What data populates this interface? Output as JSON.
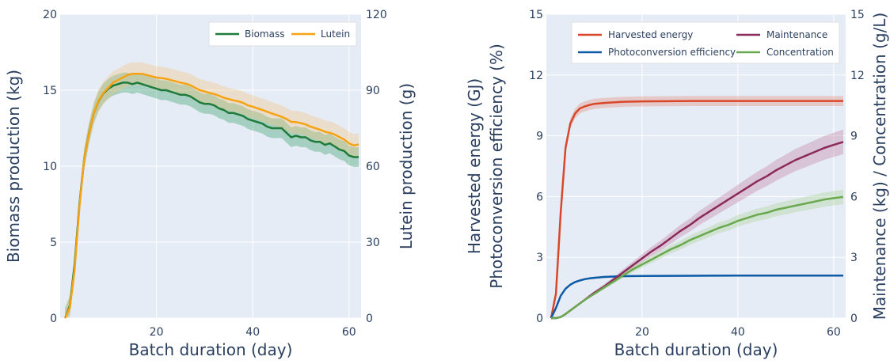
{
  "chart_data": [
    {
      "type": "line",
      "xlabel": "Batch duration (day)",
      "ylabel": "Biomass production (kg)",
      "y2label": "Lutein production (g)",
      "xlim": [
        0,
        62.5
      ],
      "ylim": [
        0,
        20
      ],
      "y2lim": [
        0,
        120
      ],
      "x_ticks": [
        "20",
        "40",
        "60"
      ],
      "y_ticks": [
        "0",
        "5",
        "10",
        "15",
        "20"
      ],
      "y2_ticks": [
        "0",
        "30",
        "60",
        "90",
        "120"
      ],
      "grid": true,
      "legend": "top-right",
      "series": [
        {
          "name": "Biomass",
          "axis": "y",
          "color": "#1e7b3a",
          "band_color": "#2e9e5e",
          "x": [
            1,
            2,
            3,
            4,
            5,
            6,
            7,
            8,
            9,
            10,
            11,
            12,
            13,
            14,
            15,
            16,
            17,
            18,
            19,
            20,
            21,
            22,
            23,
            24,
            25,
            26,
            27,
            28,
            29,
            30,
            31,
            32,
            33,
            34,
            35,
            36,
            37,
            38,
            39,
            40,
            41,
            42,
            43,
            44,
            45,
            46,
            47,
            48,
            49,
            50,
            51,
            52,
            53,
            54,
            55,
            56,
            57,
            58,
            59,
            60,
            61,
            62
          ],
          "values": [
            0,
            0.8,
            3.5,
            7.5,
            10.5,
            12.2,
            13.5,
            14.3,
            14.8,
            15.1,
            15.3,
            15.4,
            15.5,
            15.5,
            15.4,
            15.5,
            15.4,
            15.3,
            15.2,
            15.1,
            15.0,
            15.0,
            14.9,
            14.8,
            14.7,
            14.7,
            14.6,
            14.4,
            14.2,
            14.1,
            14.1,
            14.0,
            13.8,
            13.7,
            13.5,
            13.5,
            13.4,
            13.3,
            13.1,
            13.0,
            12.9,
            12.8,
            12.6,
            12.5,
            12.5,
            12.5,
            12.2,
            11.9,
            12.0,
            11.9,
            11.9,
            11.7,
            11.6,
            11.6,
            11.4,
            11.5,
            11.3,
            11.1,
            11.0,
            10.7,
            10.6,
            10.6
          ],
          "band": 0.65
        },
        {
          "name": "Lutein",
          "axis": "y2",
          "color": "#f5a312",
          "band_color": "#f5c27a",
          "x": [
            1,
            2,
            3,
            4,
            5,
            6,
            7,
            8,
            9,
            10,
            11,
            12,
            13,
            14,
            15,
            16,
            17,
            18,
            19,
            20,
            21,
            22,
            23,
            24,
            25,
            26,
            27,
            28,
            29,
            30,
            31,
            32,
            33,
            34,
            35,
            36,
            37,
            38,
            39,
            40,
            41,
            42,
            43,
            44,
            45,
            46,
            47,
            48,
            49,
            50,
            51,
            52,
            53,
            54,
            55,
            56,
            57,
            58,
            59,
            60,
            61,
            62
          ],
          "values": [
            0,
            4.2,
            19,
            44,
            63,
            73,
            81,
            86,
            89,
            91,
            93,
            94,
            95,
            96,
            96.5,
            96.5,
            96.5,
            96,
            95.5,
            95,
            94.8,
            94.5,
            94,
            93.5,
            93,
            92.6,
            92,
            91,
            90,
            89.5,
            88.9,
            88.5,
            87.8,
            87,
            86.5,
            86,
            85.6,
            85,
            84,
            83.5,
            82.8,
            82.2,
            81.5,
            80.8,
            80.2,
            79.5,
            78.6,
            77.5,
            77.4,
            77,
            76.5,
            75.6,
            75,
            74.4,
            73.6,
            73.2,
            72.5,
            71.5,
            70.5,
            69,
            68.2,
            68.6
          ],
          "band": 4.5
        }
      ]
    },
    {
      "type": "line",
      "xlabel": "Batch duration (day)",
      "ylabel": [
        "Harvested energy (GJ)",
        "Photoconversion efficiency (%)"
      ],
      "y2label": "Maintenance (kg) / Concentration (g/L)",
      "xlim": [
        0,
        62.5
      ],
      "ylim": [
        0,
        15
      ],
      "y2lim": [
        0,
        15
      ],
      "x_ticks": [
        "20",
        "40",
        "60"
      ],
      "y_ticks": [
        "0",
        "3",
        "6",
        "9",
        "12",
        "15"
      ],
      "y2_ticks": [
        "0",
        "3",
        "6",
        "9",
        "12",
        "15"
      ],
      "grid": true,
      "legend": "top",
      "series": [
        {
          "name": "Harvested energy",
          "axis": "y",
          "color": "#d9472b",
          "band_color": "#e58a72",
          "x": [
            1,
            2,
            3,
            4,
            5,
            6,
            7,
            8,
            9,
            10,
            12,
            14,
            16,
            20,
            30,
            40,
            50,
            62
          ],
          "values": [
            0,
            1.2,
            5.2,
            8.4,
            9.6,
            10.1,
            10.35,
            10.45,
            10.52,
            10.58,
            10.62,
            10.65,
            10.68,
            10.7,
            10.72,
            10.72,
            10.72,
            10.72
          ],
          "band": 0.25
        },
        {
          "name": "Photoconversion efficiency",
          "axis": "y",
          "color": "#0d5aa7",
          "band_color": "#5b8fcf",
          "x": [
            1,
            2,
            3,
            4,
            5,
            6,
            7,
            8,
            9,
            10,
            12,
            14,
            16,
            20,
            30,
            40,
            50,
            62
          ],
          "values": [
            0,
            0.5,
            1.1,
            1.45,
            1.65,
            1.78,
            1.86,
            1.92,
            1.96,
            1.99,
            2.03,
            2.05,
            2.07,
            2.08,
            2.09,
            2.1,
            2.1,
            2.1
          ],
          "band": 0.05
        },
        {
          "name": "Maintenance",
          "axis": "y2",
          "color": "#8b2a5a",
          "band_color": "#c07a9c",
          "x": [
            1,
            2,
            3,
            4,
            6,
            8,
            10,
            12,
            14,
            16,
            18,
            20,
            22,
            24,
            26,
            28,
            30,
            32,
            34,
            36,
            38,
            40,
            42,
            44,
            46,
            48,
            50,
            52,
            54,
            56,
            58,
            60,
            62
          ],
          "values": [
            0,
            0,
            0.05,
            0.2,
            0.55,
            0.9,
            1.25,
            1.55,
            1.9,
            2.25,
            2.6,
            2.95,
            3.3,
            3.6,
            3.95,
            4.3,
            4.6,
            4.95,
            5.25,
            5.55,
            5.85,
            6.15,
            6.45,
            6.75,
            7.0,
            7.3,
            7.55,
            7.8,
            8.0,
            8.2,
            8.4,
            8.55,
            8.7
          ],
          "band_frac": 0.07
        },
        {
          "name": "Concentration",
          "axis": "y2",
          "color": "#6aa84f",
          "band_color": "#a8d08d",
          "x": [
            1,
            2,
            3,
            4,
            6,
            8,
            10,
            12,
            14,
            16,
            18,
            20,
            22,
            24,
            26,
            28,
            30,
            32,
            34,
            36,
            38,
            40,
            42,
            44,
            46,
            48,
            50,
            52,
            54,
            56,
            58,
            60,
            62
          ],
          "values": [
            0,
            0,
            0.05,
            0.2,
            0.55,
            0.9,
            1.2,
            1.5,
            1.8,
            2.1,
            2.4,
            2.65,
            2.9,
            3.15,
            3.4,
            3.6,
            3.85,
            4.05,
            4.25,
            4.45,
            4.6,
            4.8,
            4.95,
            5.1,
            5.2,
            5.35,
            5.45,
            5.55,
            5.65,
            5.75,
            5.85,
            5.92,
            5.98
          ],
          "band_frac": 0.06
        }
      ]
    }
  ]
}
